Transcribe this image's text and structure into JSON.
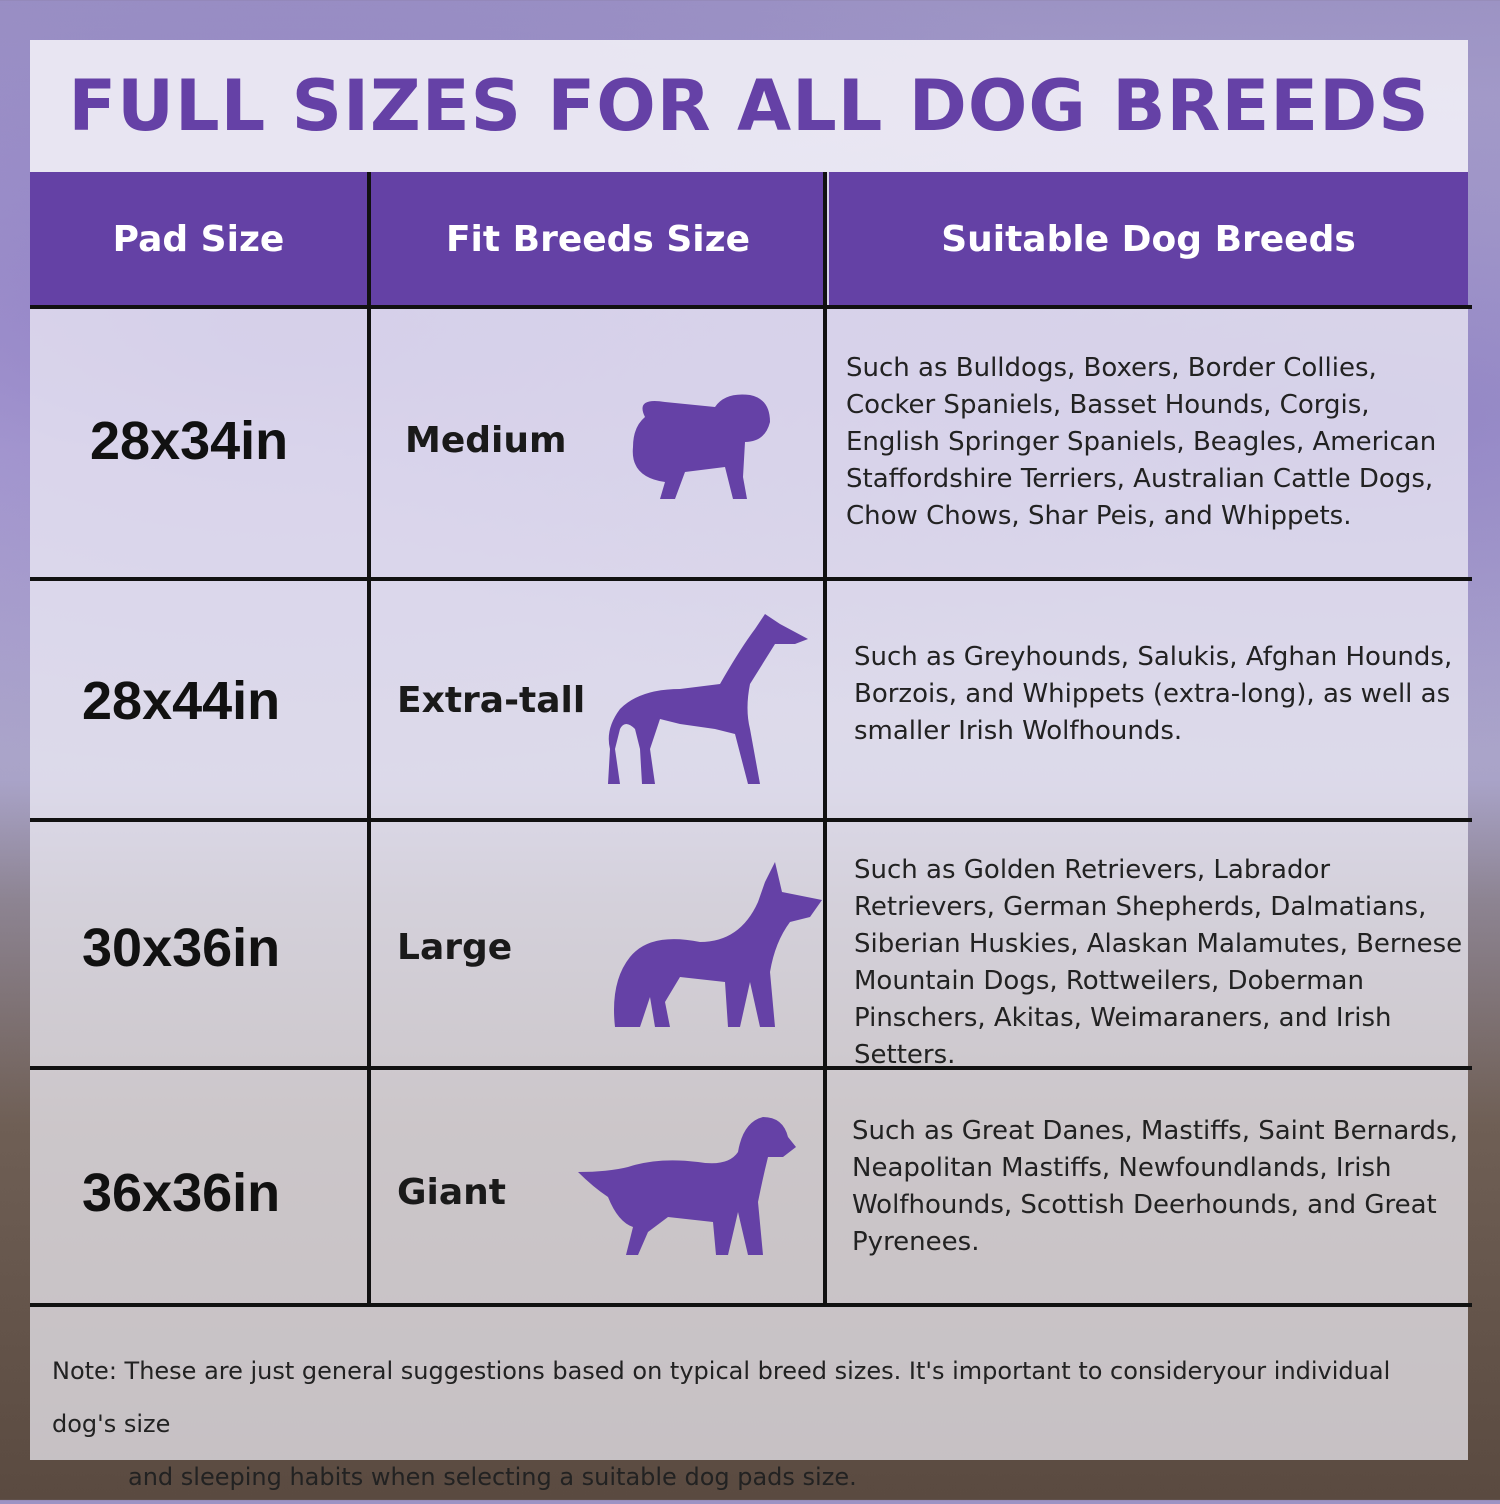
{
  "title": "FULL SIZES FOR ALL DOG BREEDS",
  "colors": {
    "accent": "#6441a5"
  },
  "table": {
    "headers": [
      "Pad Size",
      "Fit Breeds Size",
      "Suitable Dog Breeds"
    ],
    "rows": [
      {
        "pad_size": "28x34in",
        "fit": "Medium",
        "icon": "bulldog-silhouette-icon",
        "breeds": "Such as Bulldogs, Boxers, Border Collies, Cocker Spaniels, Basset Hounds, Corgis, English Springer Spaniels, Beagles, American Staffordshire Terriers, Australian Cattle Dogs, Chow Chows, Shar Peis, and Whippets."
      },
      {
        "pad_size": "28x44in",
        "fit": "Extra-tall",
        "icon": "greyhound-silhouette-icon",
        "breeds": "Such as Greyhounds, Salukis, Afghan Hounds, Borzois, and Whippets (extra-long), as well as smaller Irish Wolfhounds."
      },
      {
        "pad_size": "30x36in",
        "fit": "Large",
        "icon": "shepherd-silhouette-icon",
        "breeds": "Such as Golden Retrievers, Labrador Retrievers, German Shepherds, Dalmatians, Siberian Huskies, Alaskan Malamutes, Bernese Mountain Dogs, Rottweilers, Doberman Pinschers, Akitas, Weimaraners, and Irish Setters."
      },
      {
        "pad_size": "36x36in",
        "fit": "Giant",
        "icon": "setter-silhouette-icon",
        "breeds": "Such as Great Danes, Mastiffs, Saint Bernards, Neapolitan Mastiffs, Newfoundlands, Irish Wolfhounds, Scottish Deerhounds, and Great Pyrenees."
      }
    ]
  },
  "note": {
    "line1": "Note: These are just general suggestions based on typical breed sizes. It's important to consideryour individual dog's size",
    "line2": "and sleeping habits when selecting a suitable dog pads size."
  }
}
